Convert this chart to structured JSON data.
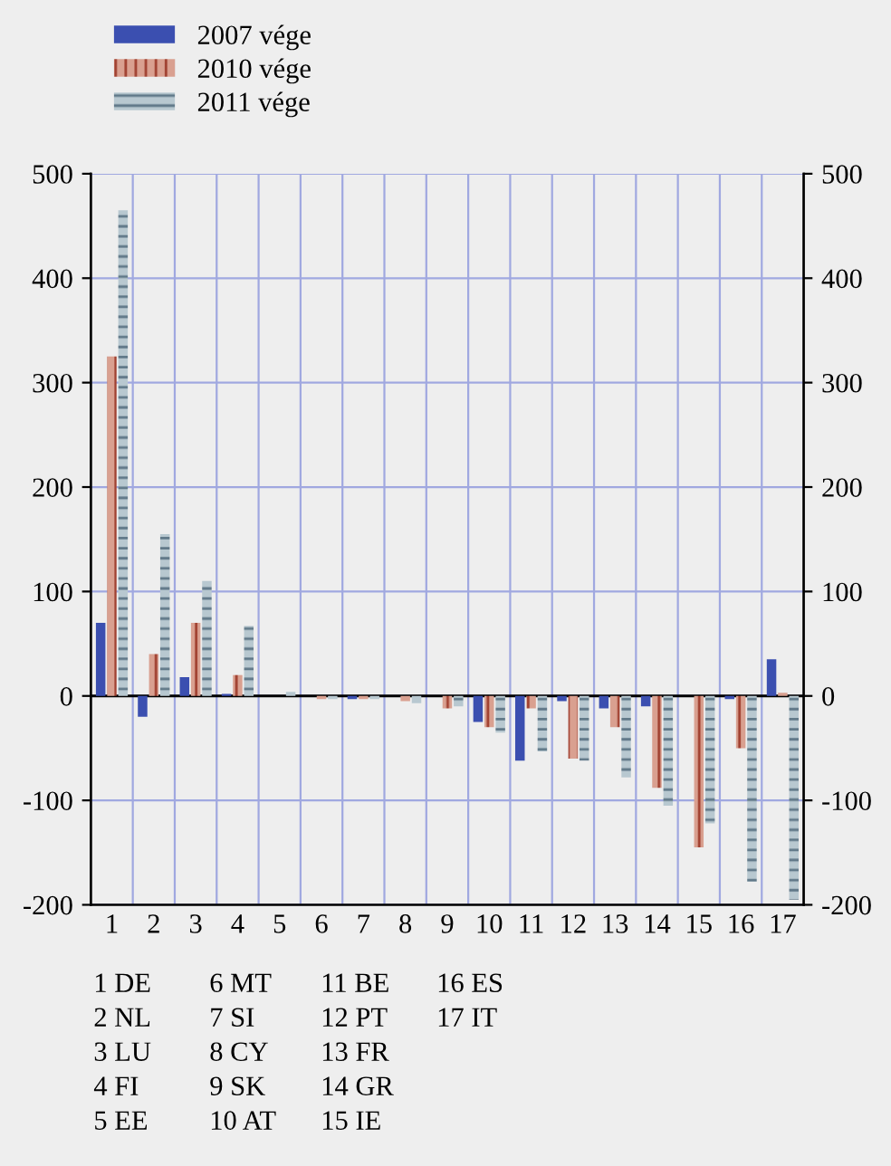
{
  "chart_data": {
    "type": "bar",
    "categories": [
      "1",
      "2",
      "3",
      "4",
      "5",
      "6",
      "7",
      "8",
      "9",
      "10",
      "11",
      "12",
      "13",
      "14",
      "15",
      "16",
      "17"
    ],
    "series": [
      {
        "name": "2007 vége",
        "color": "#3b4fb0",
        "values": [
          70,
          -20,
          18,
          2,
          0,
          0,
          -3,
          0,
          0,
          -25,
          -62,
          -5,
          -12,
          -10,
          0,
          -3,
          35
        ]
      },
      {
        "name": "2010 vége",
        "color": "#d9a090",
        "values": [
          325,
          40,
          70,
          20,
          0,
          -3,
          -3,
          -5,
          -12,
          -30,
          -12,
          -60,
          -30,
          -88,
          -145,
          -50,
          3
        ]
      },
      {
        "name": "2011 vége",
        "color": "#b8c8d0",
        "values": [
          465,
          155,
          110,
          67,
          4,
          -3,
          -3,
          -7,
          -10,
          -35,
          -53,
          -62,
          -78,
          -105,
          -122,
          -178,
          -195
        ]
      }
    ],
    "ylim": [
      -200,
      500
    ],
    "yticks": [
      -200,
      -100,
      0,
      100,
      200,
      300,
      400,
      500
    ],
    "y2lim": [
      -200,
      500
    ],
    "y2ticks": [
      -200,
      -100,
      0,
      100,
      200,
      300,
      400,
      500
    ],
    "grid": true,
    "legend": "top left",
    "annotations": [
      "1 DE",
      "2 NL",
      "3 LU",
      "4 FI",
      "5 EE",
      "6 MT",
      "7 SI",
      "8 CY",
      "9 SK",
      "10 AT",
      "11 BE",
      "12 PT",
      "13 FR",
      "14 GR",
      "15 IE",
      "16 ES",
      "17 IT"
    ]
  }
}
